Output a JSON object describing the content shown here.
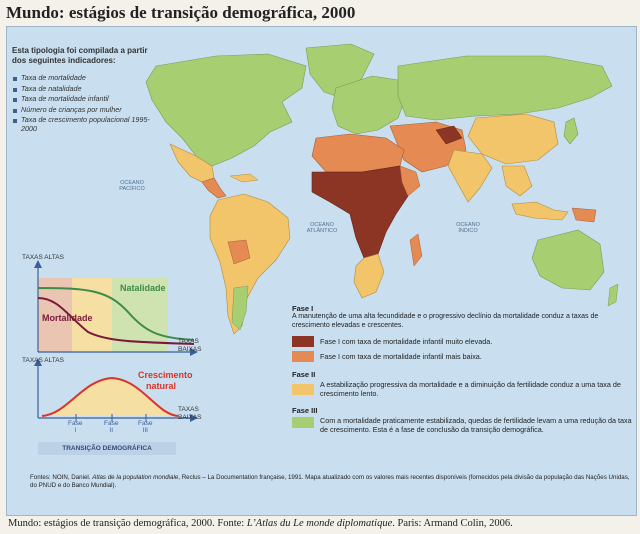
{
  "title": "Mundo: estágios de transição demográfica, 2000",
  "indicators": {
    "intro": "Esta tipologia foi compilada a partir dos seguintes indicadores:",
    "items": [
      "Taxa de mortalidade",
      "Taxa de natalidade",
      "Taxa de mortalidade infantil",
      "Número de crianças por mulher",
      "Taxa de crescimento populacional 1995-2000"
    ]
  },
  "oceans": {
    "pacific_north": "OCEANO PACÍFICO",
    "atlantic": "OCEANO ATLÂNTICO",
    "indian": "OCEANO ÍNDICO"
  },
  "graph1": {
    "y_axis": "TAXAS ALTAS",
    "x_axis": "TAXAS BAIXAS",
    "natalidade": "Natalidade",
    "mortalidade": "Mortalidade"
  },
  "graph2": {
    "y_axis": "TAXAS ALTAS",
    "x_axis": "TAXAS BAIXAS",
    "curve_label_1": "Crescimento",
    "curve_label_2": "natural",
    "phase_word": "Fase",
    "phases": [
      "I",
      "II",
      "III"
    ],
    "caption": "TRANSIÇÃO DEMOGRÁFICA"
  },
  "legend": {
    "phase1": {
      "head": "Fase I",
      "desc": "A manutenção de uma alta fecundidade e o progressivo declínio da mortalidade conduz a taxas de crescimento elevadas e crescentes.",
      "row_a": "Fase I com taxa de mortalidade infantil muito elevada.",
      "row_b": "Fase I com taxa de mortalidade infantil mais baixa."
    },
    "phase2": {
      "head": "Fase II",
      "desc": "A estabilização progressiva da mortalidade e a diminuição da fertilidade conduz a uma taxa de crescimento lento."
    },
    "phase3": {
      "head": "Fase III",
      "desc": "Com a mortalidade praticamente estabilizada, quedas de fertilidade levam a uma redução da taxa de crescimento. Esta é a fase de conclusão da transição demográfica."
    },
    "colors": {
      "phase1_high": "#8c3525",
      "phase1_low": "#e58a52",
      "phase2": "#f2c56a",
      "phase3": "#a7cf72"
    }
  },
  "sources": {
    "prefix": "Fontes: NOIN, Daniel.",
    "book": "Atlas de la population mondiale",
    "rest": ", Reclus – La Documentation française, 1991. Mapa atualizado com os valores mais recentes disponíveis (fornecidos pela divisão da população das Nações Unidas, do PNUD e do Banco Mundial)."
  },
  "caption": {
    "prefix": "Mundo: estágios de transição demográfica, 2000. Fonte:",
    "work": "L’Atlas du Le monde diplomatique",
    "suffix": ". Paris: Armand Colin, 2006."
  }
}
